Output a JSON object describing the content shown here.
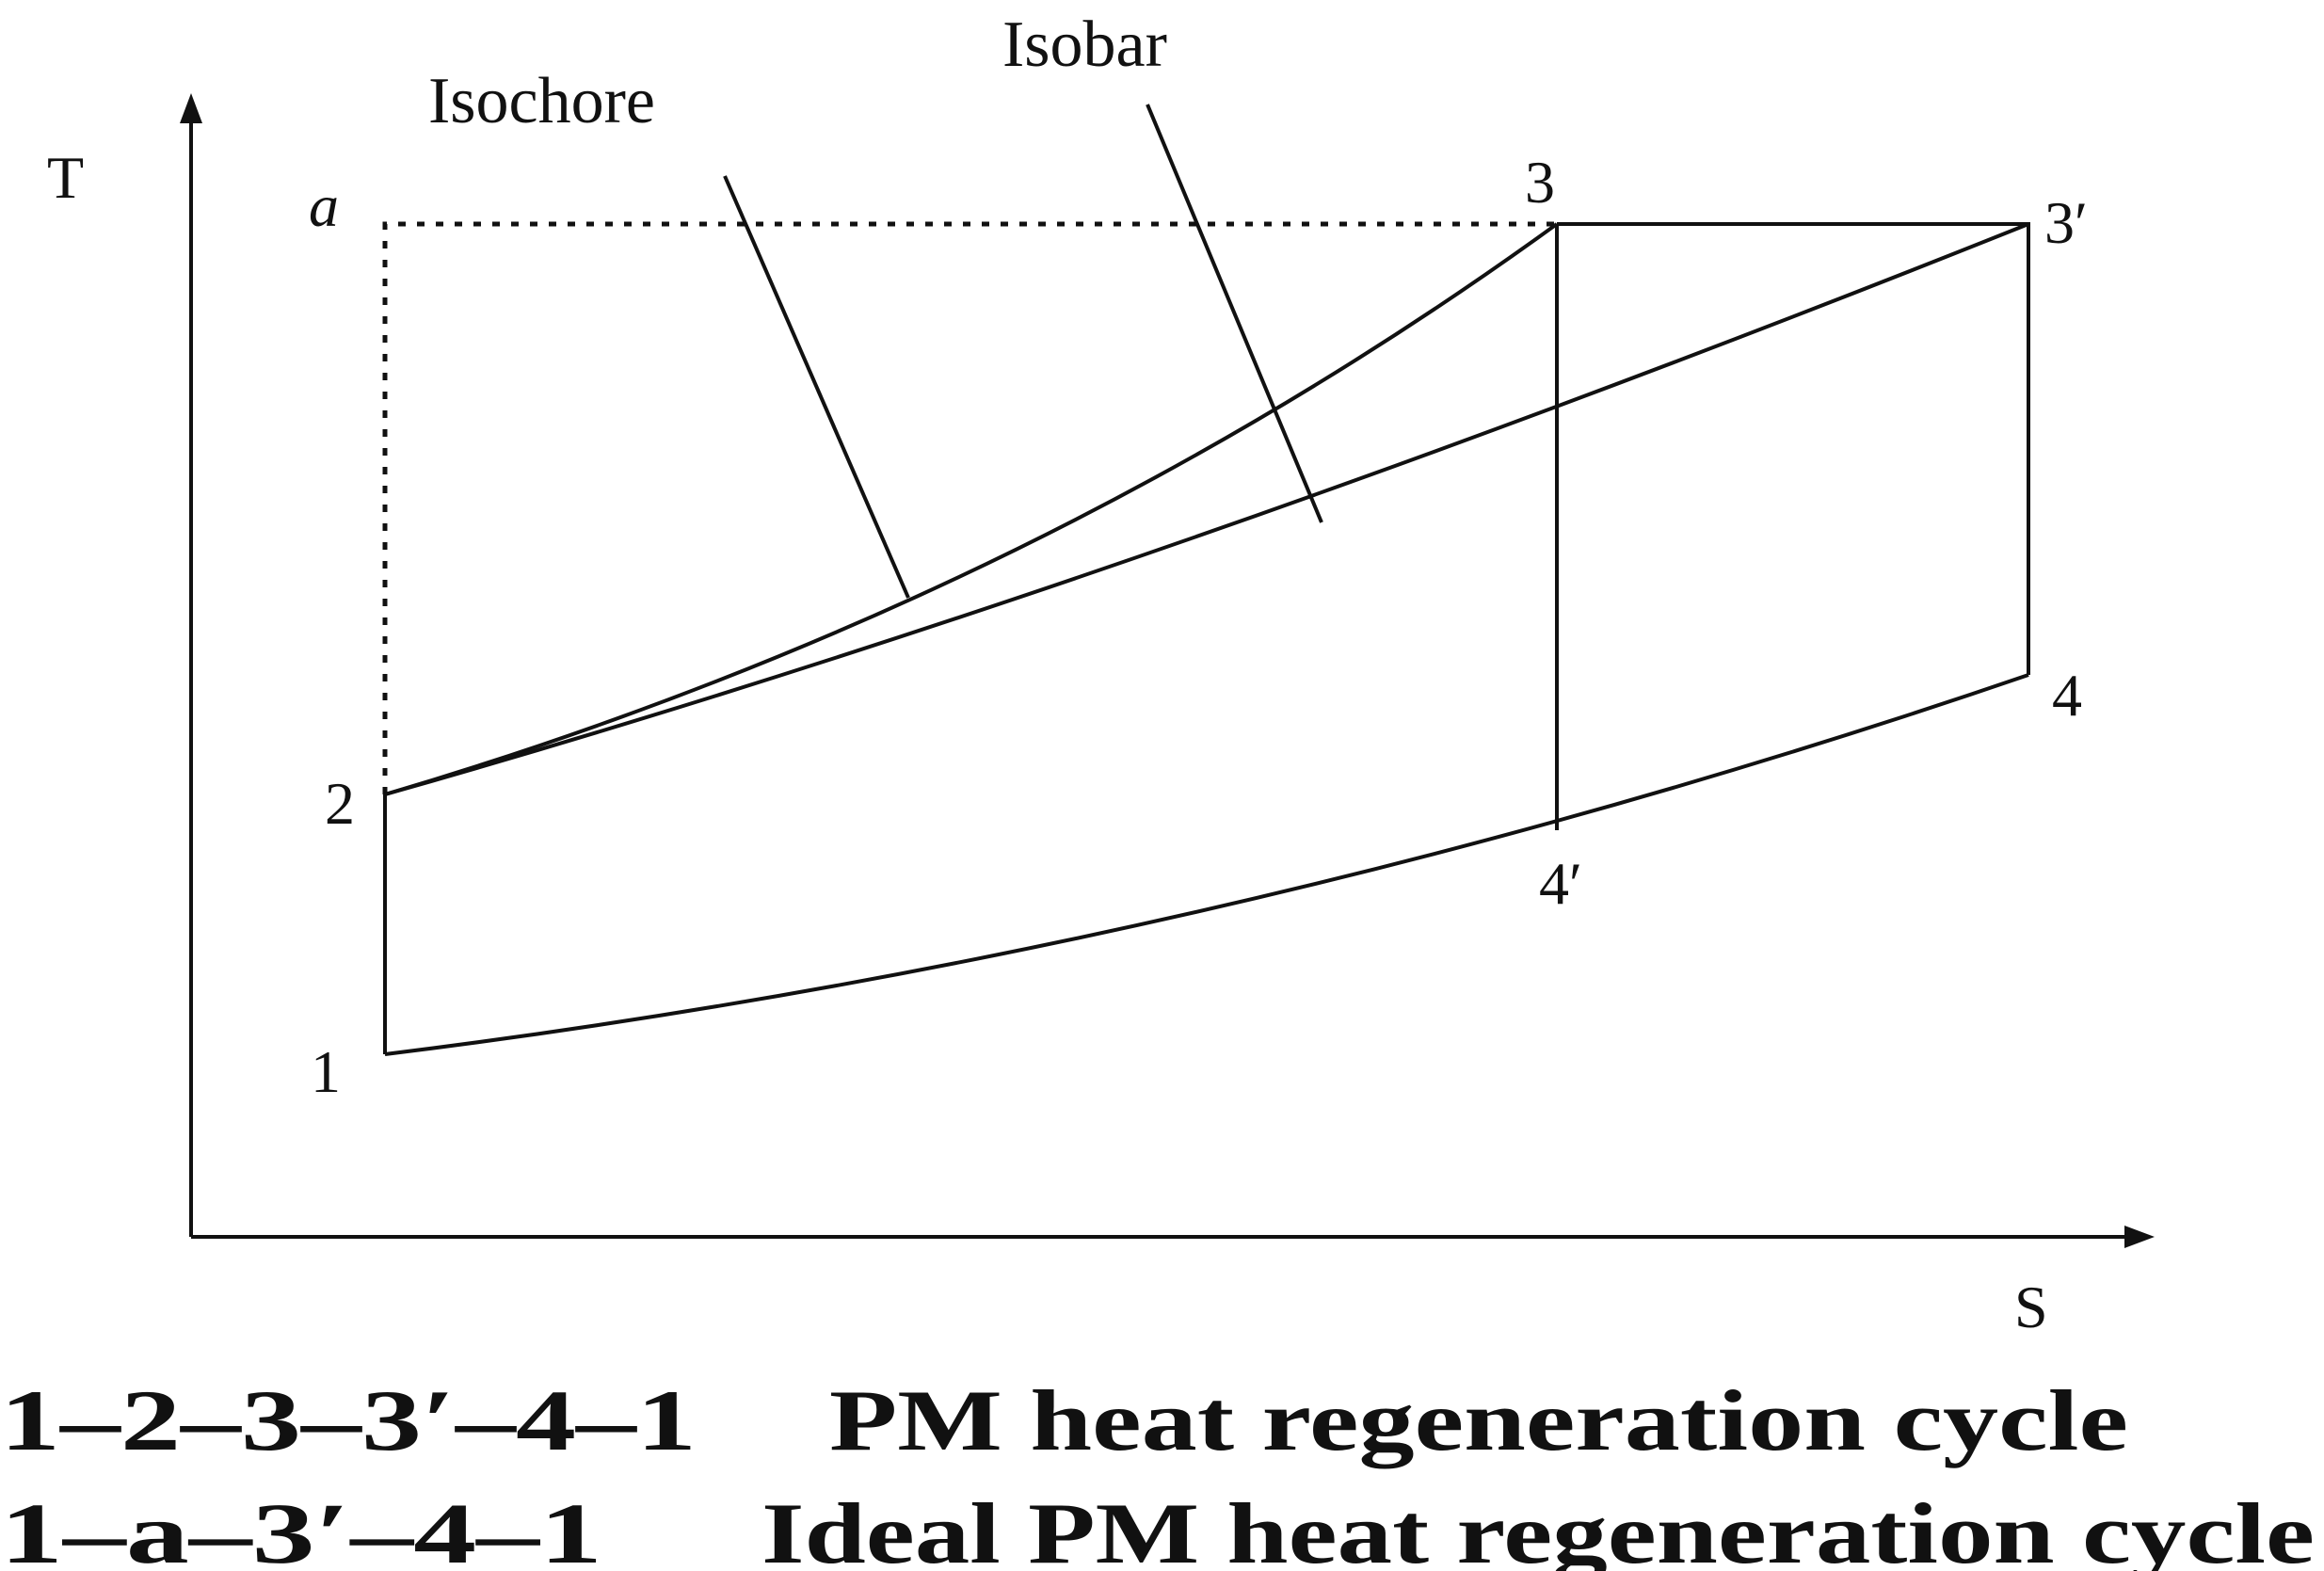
{
  "axes": {
    "y_label": "T",
    "x_label": "S"
  },
  "annotations": {
    "isochore": "Isochore",
    "isobar": "Isobar"
  },
  "points": {
    "p1": "1",
    "p2": "2",
    "p3": "3",
    "p3p": "3′",
    "p4": "4",
    "p4p": "4′",
    "pa": "a"
  },
  "legend": [
    {
      "cycle": "1–2–3–3′–4–1",
      "description": "PM heat regeneration cycle"
    },
    {
      "cycle": "1–a–3′–4–1",
      "description": "Ideal PM heat regeneration cycle"
    }
  ]
}
